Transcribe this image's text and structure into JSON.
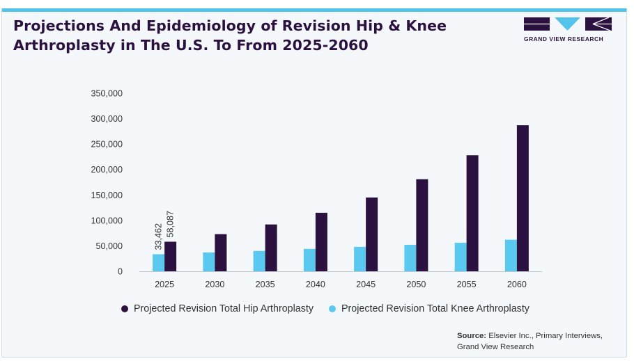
{
  "header": {
    "title": "Projections And Epidemiology of Revision Hip & Knee Arthroplasty in The U.S. To From 2025-2060"
  },
  "logo": {
    "text": "GRAND VIEW RESEARCH",
    "color": "#2b1140",
    "accent": "#52c3ea"
  },
  "footer": {
    "source_label": "Source:",
    "source_text": "Elsevier Inc., Primary Interviews, Grand View Research"
  },
  "chart_data": {
    "type": "bar",
    "categories": [
      "2025",
      "2030",
      "2035",
      "2040",
      "2045",
      "2050",
      "2055",
      "2060"
    ],
    "series": [
      {
        "name": "Projected Revision Total Hip Arthroplasty",
        "color": "#2b1140",
        "values": [
          58087,
          73000,
          92000,
          115000,
          145000,
          181000,
          228000,
          287000
        ]
      },
      {
        "name": "Projected Revision Total Knee Arthroplasty",
        "color": "#5bc8ef",
        "values": [
          33462,
          37000,
          40000,
          44000,
          48000,
          52000,
          56000,
          62000
        ]
      }
    ],
    "data_labels": [
      {
        "series": 1,
        "category": "2025",
        "text": "33,462"
      },
      {
        "series": 0,
        "category": "2025",
        "text": "58,087"
      }
    ],
    "y_ticks": [
      "0",
      "50,000",
      "100,000",
      "150,000",
      "200,000",
      "250,000",
      "300,000",
      "350,000"
    ],
    "ylim": [
      0,
      350000
    ],
    "grid": false,
    "legend_position": "bottom"
  }
}
